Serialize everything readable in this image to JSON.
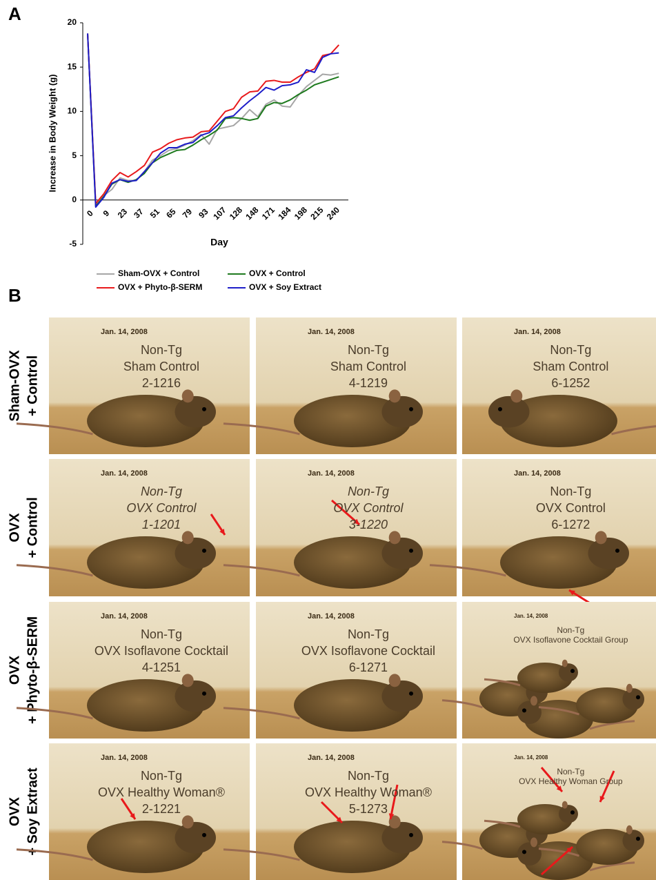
{
  "panel_a_label": "A",
  "chart_data": {
    "type": "line",
    "y_label": "Increase in Body Weight (g)",
    "x_label": "Day",
    "categories": [
      "0",
      null,
      "9",
      null,
      "23",
      null,
      "37",
      null,
      "51",
      null,
      "65",
      null,
      "79",
      null,
      "93",
      null,
      "107",
      null,
      "128",
      null,
      "148",
      null,
      "171",
      null,
      "184",
      null,
      "198",
      null,
      "215",
      null,
      "240",
      null
    ],
    "series": [
      {
        "name": "Sham-OVX + Control",
        "color": "#a6a6a6",
        "values": [
          18.8,
          -0.5,
          0.5,
          1.2,
          2.5,
          2.2,
          2.2,
          3.2,
          4.5,
          5.0,
          5.6,
          5.8,
          6.2,
          6.7,
          7.4,
          6.3,
          8.0,
          8.2,
          8.4,
          9.2,
          10.2,
          9.4,
          10.8,
          11.3,
          10.6,
          10.5,
          11.8,
          12.8,
          13.5,
          14.2,
          14.1,
          14.3
        ]
      },
      {
        "name": "OVX + Control",
        "color": "#1e7a1e",
        "values": [
          18.8,
          -0.7,
          0.4,
          1.8,
          2.3,
          2.0,
          2.3,
          3.0,
          4.2,
          4.8,
          5.2,
          5.6,
          5.7,
          6.2,
          6.8,
          7.3,
          7.9,
          9.2,
          9.3,
          9.2,
          9.0,
          9.2,
          10.6,
          11.0,
          10.9,
          11.3,
          11.9,
          12.4,
          13.0,
          13.3,
          13.6,
          13.9
        ]
      },
      {
        "name": "OVX + Phyto-β-SERM",
        "color": "#e8191b",
        "values": [
          18.8,
          -0.4,
          0.7,
          2.2,
          3.1,
          2.6,
          3.2,
          3.9,
          5.4,
          5.8,
          6.4,
          6.8,
          7.0,
          7.1,
          7.7,
          7.8,
          8.9,
          10.0,
          10.3,
          11.6,
          12.2,
          12.3,
          13.4,
          13.5,
          13.3,
          13.3,
          13.9,
          14.4,
          14.8,
          16.3,
          16.5,
          17.5
        ]
      },
      {
        "name": "OVX + Soy Extract",
        "color": "#1d1dc9",
        "values": [
          18.8,
          -0.8,
          0.3,
          1.9,
          2.3,
          2.1,
          2.2,
          3.2,
          4.2,
          5.3,
          5.9,
          5.9,
          6.3,
          6.5,
          7.3,
          7.6,
          8.4,
          9.3,
          9.5,
          10.4,
          11.2,
          11.9,
          12.7,
          12.4,
          12.9,
          13.0,
          13.3,
          14.7,
          14.4,
          16.1,
          16.5,
          16.6
        ]
      }
    ],
    "ylim": [
      -5,
      20
    ],
    "yticks": [
      -5,
      0,
      5,
      10,
      15,
      20
    ]
  },
  "panel_b": {
    "label": "B",
    "rows": [
      {
        "label_lines": [
          "Sham-OVX",
          "+ Control"
        ],
        "photos": [
          {
            "date": "Jan. 14, 2008",
            "lines": [
              "Non-Tg",
              "Sham Control",
              "2-1216"
            ]
          },
          {
            "date": "Jan. 14, 2008",
            "lines": [
              "Non-Tg",
              "Sham Control",
              "4-1219"
            ]
          },
          {
            "date": "Jan. 14, 2008",
            "lines": [
              "Non-Tg",
              "Sham Control",
              "6-1252"
            ]
          }
        ]
      },
      {
        "label_lines": [
          "OVX",
          "+ Control"
        ],
        "photos": [
          {
            "date": "Jan. 14, 2008",
            "lines": [
              "Non-Tg",
              "OVX Control",
              "1-1201"
            ]
          },
          {
            "date": "Jan. 14, 2008",
            "lines": [
              "Non-Tg",
              "OVX Control",
              "3-1220"
            ]
          },
          {
            "date": "Jan. 14, 2008",
            "lines": [
              "Non-Tg",
              "OVX Control",
              "6-1272"
            ]
          }
        ]
      },
      {
        "label_lines": [
          "OVX",
          "+ Phyto-β-SERM"
        ],
        "photos": [
          {
            "date": "Jan. 14, 2008",
            "lines": [
              "Non-Tg",
              "OVX Isoflavone Cocktail",
              "4-1251"
            ]
          },
          {
            "date": "Jan. 14, 2008",
            "lines": [
              "Non-Tg",
              "OVX Isoflavone Cocktail",
              "6-1271"
            ]
          },
          {
            "date": "Jan. 14, 2008",
            "lines": [
              "Non-Tg",
              "OVX Isoflavone Cocktail Group"
            ]
          }
        ]
      },
      {
        "label_lines": [
          "OVX",
          "+ Soy Extract"
        ],
        "photos": [
          {
            "date": "Jan. 14, 2008",
            "lines": [
              "Non-Tg",
              "OVX Healthy Woman®",
              "2-1221"
            ]
          },
          {
            "date": "Jan. 14, 2008",
            "lines": [
              "Non-Tg",
              "OVX Healthy Woman®",
              "5-1273"
            ]
          },
          {
            "date": "Jan. 14, 2008",
            "lines": [
              "Non-Tg",
              "OVX Healthy Woman Group"
            ]
          }
        ]
      }
    ]
  }
}
